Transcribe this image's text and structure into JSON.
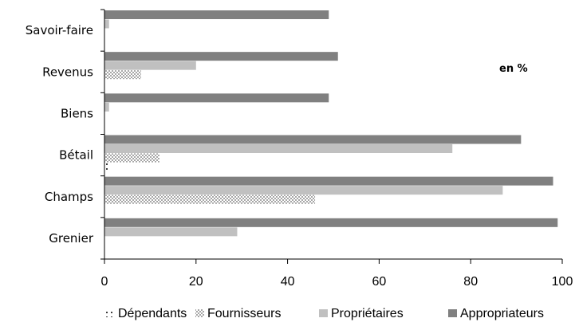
{
  "chart_data": {
    "type": "bar",
    "orientation": "horizontal",
    "categories": [
      "Savoir-faire",
      "Revenus",
      "Biens",
      "Bétail",
      "Champs",
      "Grenier"
    ],
    "series": [
      {
        "name": "Dépendants",
        "values": [
          0,
          0,
          0,
          1,
          0,
          0
        ],
        "color": "#000000",
        "pattern": "sparse-dots"
      },
      {
        "name": "Fournisseurs",
        "values": [
          0,
          8,
          0,
          12,
          46,
          0
        ],
        "color": "#888888",
        "pattern": "dots"
      },
      {
        "name": "Propriétaires",
        "values": [
          1,
          20,
          1,
          76,
          87,
          29
        ],
        "color": "#c0c0c0",
        "pattern": "solid"
      },
      {
        "name": "Appropriateurs",
        "values": [
          49,
          51,
          49,
          91,
          98,
          99
        ],
        "color": "#808080",
        "pattern": "solid"
      }
    ],
    "xlim": [
      0,
      100
    ],
    "xticks": [
      0,
      20,
      40,
      60,
      80,
      100
    ],
    "annotation": "en %",
    "legend_position": "bottom",
    "grid": false
  }
}
